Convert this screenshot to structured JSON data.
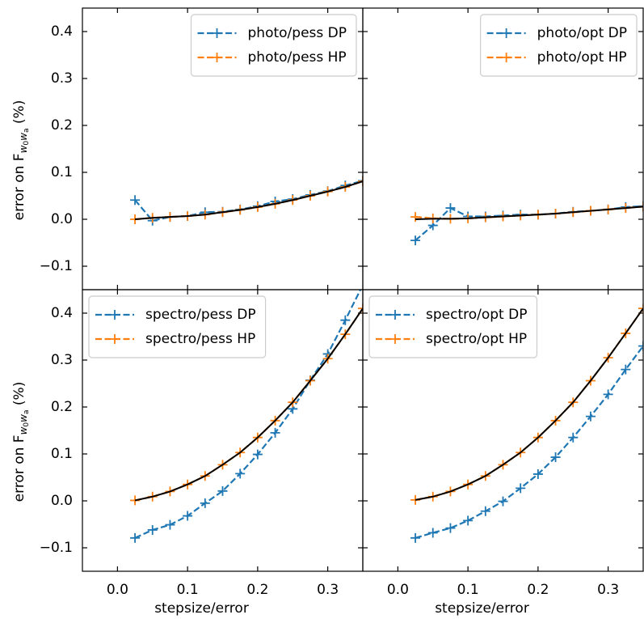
{
  "chart_data": [
    {
      "type": "line",
      "xlim": [
        -0.05,
        0.35
      ],
      "ylim": [
        -0.15,
        0.45
      ],
      "xticks": [
        {
          "value": 0,
          "label": "0.0"
        },
        0.1,
        0.2,
        0.3
      ],
      "yticks": [
        {
          "value": -0.1,
          "label": "−0.1"
        },
        {
          "value": 0,
          "label": "0.0"
        },
        0.1,
        0.2,
        0.3,
        0.4
      ],
      "ylabel": [
        "error on F",
        "w",
        "0",
        "w",
        "a",
        " (%)"
      ],
      "legend": "upper right",
      "x": [
        0.025,
        0.05,
        0.075,
        0.1,
        0.125,
        0.15,
        0.175,
        0.2,
        0.225,
        0.25,
        0.275,
        0.3,
        0.325,
        0.35
      ],
      "series": [
        {
          "name": "photo/pess DP",
          "color": "#1f77b4",
          "linestyle": "--",
          "marker": "+",
          "values": [
            0.041,
            -0.003,
            0.005,
            0.007,
            0.015,
            0.016,
            0.021,
            0.028,
            0.038,
            0.043,
            0.052,
            0.06,
            0.072,
            0.082
          ]
        },
        {
          "name": "photo/pess HP",
          "color": "#ff7f0e",
          "linestyle": "--",
          "marker": "+",
          "values": [
            0.0,
            0.003,
            0.005,
            0.007,
            0.01,
            0.015,
            0.02,
            0.026,
            0.033,
            0.041,
            0.05,
            0.059,
            0.069,
            0.081
          ]
        },
        {
          "color": "#000000",
          "linestyle": "-",
          "values": [
            0.0,
            0.003,
            0.005,
            0.007,
            0.01,
            0.015,
            0.02,
            0.026,
            0.033,
            0.041,
            0.05,
            0.059,
            0.069,
            0.081
          ]
        }
      ]
    },
    {
      "type": "line",
      "xlim": [
        -0.05,
        0.35
      ],
      "ylim": [
        -0.15,
        0.45
      ],
      "xticks": [
        {
          "value": 0,
          "label": "0.0"
        },
        0.1,
        0.2,
        0.3
      ],
      "yticks": [
        {
          "value": -0.1,
          "label": "−0.1"
        },
        {
          "value": 0,
          "label": "0.0"
        },
        0.1,
        0.2,
        0.3,
        0.4
      ],
      "legend": "upper right",
      "x": [
        0.025,
        0.05,
        0.075,
        0.1,
        0.125,
        0.15,
        0.175,
        0.2,
        0.225,
        0.25,
        0.275,
        0.3,
        0.325,
        0.35
      ],
      "series": [
        {
          "name": "photo/opt DP",
          "color": "#1f77b4",
          "linestyle": "--",
          "marker": "+",
          "values": [
            -0.045,
            -0.013,
            0.024,
            0.006,
            0.006,
            0.008,
            0.01,
            0.01,
            0.012,
            0.016,
            0.018,
            0.021,
            0.026,
            0.028
          ]
        },
        {
          "name": "photo/opt HP",
          "color": "#ff7f0e",
          "linestyle": "--",
          "marker": "+",
          "values": [
            0.005,
            0.002,
            0.001,
            0.002,
            0.004,
            0.006,
            0.008,
            0.01,
            0.012,
            0.015,
            0.018,
            0.021,
            0.024,
            0.027
          ]
        },
        {
          "color": "#000000",
          "linestyle": "-",
          "values": [
            0.0,
            0.001,
            0.001,
            0.002,
            0.004,
            0.006,
            0.008,
            0.01,
            0.012,
            0.015,
            0.018,
            0.021,
            0.024,
            0.027
          ]
        }
      ]
    },
    {
      "type": "line",
      "xlim": [
        -0.05,
        0.35
      ],
      "ylim": [
        -0.15,
        0.45
      ],
      "xticks": [
        {
          "value": 0,
          "label": "0.0"
        },
        0.1,
        0.2,
        0.3
      ],
      "yticks": [
        {
          "value": -0.1,
          "label": "−0.1"
        },
        {
          "value": 0,
          "label": "0.0"
        },
        0.1,
        0.2,
        0.3,
        0.4
      ],
      "xlabel": "stepsize/error",
      "ylabel": [
        "error on F",
        "w",
        "0",
        "w",
        "a",
        " (%)"
      ],
      "legend": "upper left",
      "x": [
        0.025,
        0.05,
        0.075,
        0.1,
        0.125,
        0.15,
        0.175,
        0.2,
        0.225,
        0.25,
        0.275,
        0.3,
        0.325,
        0.35
      ],
      "series": [
        {
          "name": "spectro/pess DP",
          "color": "#1f77b4",
          "linestyle": "--",
          "marker": "+",
          "values": [
            -0.079,
            -0.062,
            -0.051,
            -0.032,
            -0.005,
            0.021,
            0.058,
            0.099,
            0.145,
            0.196,
            0.257,
            0.313,
            0.385,
            0.46
          ]
        },
        {
          "name": "spectro/pess HP",
          "color": "#ff7f0e",
          "linestyle": "--",
          "marker": "+",
          "values": [
            0.001,
            0.009,
            0.02,
            0.035,
            0.053,
            0.077,
            0.103,
            0.135,
            0.171,
            0.21,
            0.256,
            0.303,
            0.355,
            0.41
          ]
        },
        {
          "color": "#000000",
          "linestyle": "-",
          "values": [
            0.001,
            0.009,
            0.02,
            0.035,
            0.053,
            0.077,
            0.103,
            0.135,
            0.171,
            0.21,
            0.256,
            0.303,
            0.355,
            0.41
          ]
        }
      ]
    },
    {
      "type": "line",
      "xlim": [
        -0.05,
        0.35
      ],
      "ylim": [
        -0.15,
        0.45
      ],
      "xticks": [
        {
          "value": 0,
          "label": "0.0"
        },
        0.1,
        0.2,
        0.3
      ],
      "yticks": [
        {
          "value": -0.1,
          "label": "−0.1"
        },
        {
          "value": 0,
          "label": "0.0"
        },
        0.1,
        0.2,
        0.3,
        0.4
      ],
      "xlabel": "stepsize/error",
      "legend": "upper left",
      "x": [
        0.025,
        0.05,
        0.075,
        0.1,
        0.125,
        0.15,
        0.175,
        0.2,
        0.225,
        0.25,
        0.275,
        0.3,
        0.325,
        0.35
      ],
      "series": [
        {
          "name": "spectro/opt DP",
          "color": "#1f77b4",
          "linestyle": "--",
          "marker": "+",
          "values": [
            -0.079,
            -0.068,
            -0.058,
            -0.042,
            -0.022,
            -0.001,
            0.027,
            0.057,
            0.093,
            0.135,
            0.18,
            0.227,
            0.28,
            0.33
          ]
        },
        {
          "name": "spectro/opt HP",
          "color": "#ff7f0e",
          "linestyle": "--",
          "marker": "+",
          "values": [
            0.002,
            0.009,
            0.02,
            0.035,
            0.053,
            0.077,
            0.103,
            0.135,
            0.171,
            0.21,
            0.256,
            0.305,
            0.357,
            0.41
          ]
        },
        {
          "color": "#000000",
          "linestyle": "-",
          "values": [
            0.002,
            0.009,
            0.02,
            0.035,
            0.053,
            0.077,
            0.103,
            0.135,
            0.171,
            0.21,
            0.256,
            0.305,
            0.357,
            0.41
          ]
        }
      ]
    }
  ]
}
